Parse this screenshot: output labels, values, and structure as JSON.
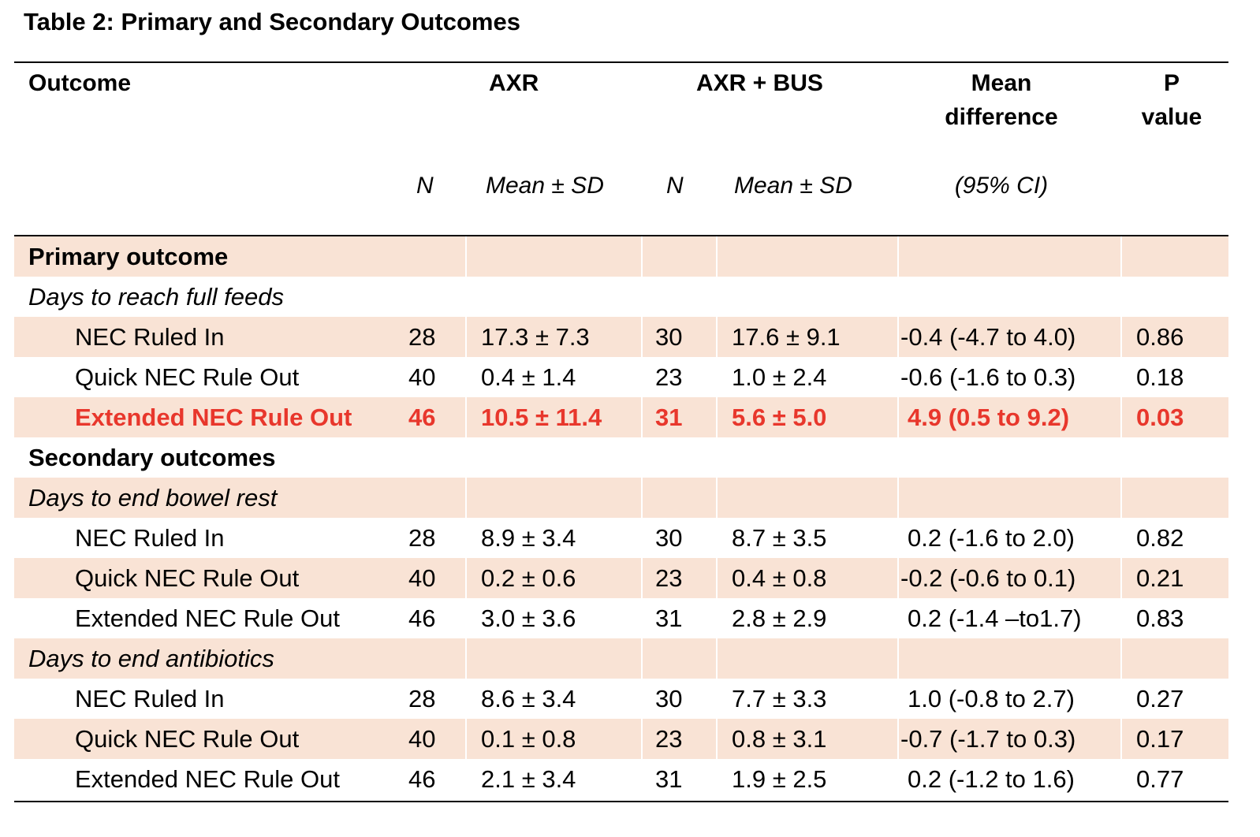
{
  "title": "Table 2: Primary and Secondary Outcomes",
  "header": {
    "outcome": "Outcome",
    "axr": "AXR",
    "axr_bus": "AXR + BUS",
    "mean_diff_1": "Mean",
    "mean_diff_2": "difference",
    "p_1": "P",
    "p_2": "value",
    "n1": "N",
    "mean_sd_1": "Mean ± SD",
    "n2": "N",
    "mean_sd_2": "Mean ± SD",
    "ci": "(95% CI)"
  },
  "sections": {
    "primary": "Primary outcome",
    "primary_sub": "Days to reach full feeds",
    "secondary": "Secondary outcomes",
    "secondary_sub1": "Days to end bowel rest",
    "secondary_sub2": "Days to end antibiotics"
  },
  "rows": {
    "feeds": [
      {
        "label": "NEC Ruled In",
        "n1": "28",
        "m1": "17.3 ± 7.3",
        "n2": "30",
        "m2": "17.6 ± 9.1",
        "md": "-0.4 (-4.7 to 4.0)",
        "p": "0.86"
      },
      {
        "label": "Quick NEC Rule Out",
        "n1": "40",
        "m1": "0.4 ± 1.4",
        "n2": "23",
        "m2": "1.0 ± 2.4",
        "md": "-0.6 (-1.6 to 0.3)",
        "p": "0.18"
      },
      {
        "label": "Extended NEC Rule Out",
        "n1": "46",
        "m1": "10.5 ± 11.4",
        "n2": "31",
        "m2": "5.6 ± 5.0",
        "md": "4.9 (0.5 to 9.2)",
        "p": "0.03"
      }
    ],
    "bowel": [
      {
        "label": "NEC Ruled In",
        "n1": "28",
        "m1": "8.9 ± 3.4",
        "n2": "30",
        "m2": "8.7 ± 3.5",
        "md": "0.2 (-1.6 to 2.0)",
        "p": "0.82"
      },
      {
        "label": "Quick NEC Rule Out",
        "n1": "40",
        "m1": "0.2 ± 0.6",
        "n2": "23",
        "m2": "0.4 ± 0.8",
        "md": "-0.2 (-0.6 to 0.1)",
        "p": "0.21"
      },
      {
        "label": "Extended NEC Rule Out",
        "n1": "46",
        "m1": "3.0 ± 3.6",
        "n2": "31",
        "m2": "2.8 ± 2.9",
        "md": "0.2 (-1.4 –to1.7)",
        "p": "0.83"
      }
    ],
    "abx": [
      {
        "label": "NEC Ruled In",
        "n1": "28",
        "m1": "8.6 ± 3.4",
        "n2": "30",
        "m2": "7.7 ± 3.3",
        "md": "1.0 (-0.8 to 2.7)",
        "p": "0.27"
      },
      {
        "label": "Quick NEC Rule Out",
        "n1": "40",
        "m1": "0.1 ± 0.8",
        "n2": "23",
        "m2": "0.8 ± 3.1",
        "md": "-0.7 (-1.7 to 0.3)",
        "p": "0.17"
      },
      {
        "label": "Extended NEC Rule Out",
        "n1": "46",
        "m1": "2.1 ± 3.4",
        "n2": "31",
        "m2": "1.9 ± 2.5",
        "md": "0.2 (-1.2 to 1.6)",
        "p": "0.77"
      }
    ]
  },
  "colors": {
    "shade": "#f9e3d5",
    "highlight": "#e8372c"
  }
}
